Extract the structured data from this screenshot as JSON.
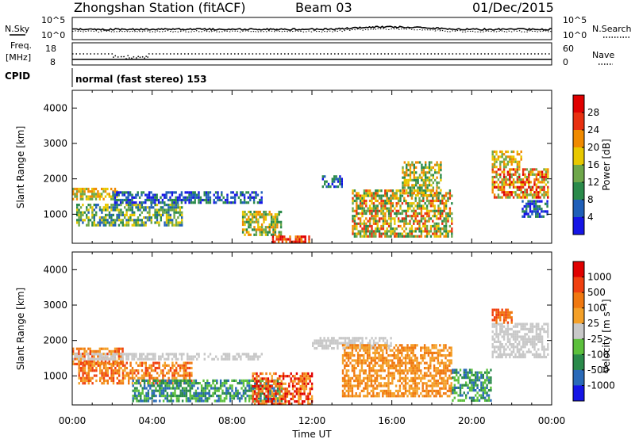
{
  "header": {
    "station": "Zhongshan Station (fitACF)",
    "beam": "Beam 03",
    "date": "01/Dec/2015"
  },
  "strip": {
    "nsky_label": "N.Sky",
    "nsky_scale": [
      "10^5",
      "10^0"
    ],
    "nsearch_label": "N.Search",
    "nsearch_scale": [
      "10^5",
      "10^0"
    ],
    "freq_label": [
      "Freq.",
      "[MHz]"
    ],
    "freq_scale": [
      "18",
      "8"
    ],
    "nave_label": "Nave",
    "nave_scale": [
      "60",
      "0"
    ],
    "cpid_label": "CPID",
    "cpid_text": "normal (fast stereo) 153"
  },
  "chart_data": [
    {
      "type": "heatmap",
      "title": "",
      "ylabel": "Slant Range [km]",
      "xlabel": "",
      "x_ticks": [
        "00:00",
        "04:00",
        "08:00",
        "12:00",
        "16:00",
        "20:00",
        "00:00"
      ],
      "y_ticks": [
        "1000",
        "2000",
        "3000",
        "4000"
      ],
      "ylim": [
        180,
        4500
      ],
      "xlim_hours": [
        0,
        24
      ],
      "colorbar": {
        "label": "Power [dB]",
        "ticks": [
          "4",
          "8",
          "12",
          "16",
          "20",
          "24",
          "28"
        ],
        "colors": [
          "#1515e6",
          "#1f5fb8",
          "#2a8a4a",
          "#6ea74a",
          "#e8c800",
          "#f08a00",
          "#e83010",
          "#e00000"
        ]
      },
      "regions": [
        {
          "t0": 0.0,
          "t1": 2.2,
          "r0": 1400,
          "r1": 1750,
          "level": [
            3,
            5
          ]
        },
        {
          "t0": 0.2,
          "t1": 5.5,
          "r0": 700,
          "r1": 1300,
          "level": [
            1,
            4
          ]
        },
        {
          "t0": 2.0,
          "t1": 9.5,
          "r0": 1350,
          "r1": 1650,
          "level": [
            0,
            2
          ]
        },
        {
          "t0": 8.5,
          "t1": 10.5,
          "r0": 400,
          "r1": 1100,
          "level": [
            2,
            5
          ]
        },
        {
          "t0": 10.0,
          "t1": 12.0,
          "r0": 200,
          "r1": 400,
          "level": [
            5,
            7
          ]
        },
        {
          "t0": 12.5,
          "t1": 13.5,
          "r0": 1800,
          "r1": 2100,
          "level": [
            0,
            2
          ]
        },
        {
          "t0": 14.0,
          "t1": 19.0,
          "r0": 400,
          "r1": 1700,
          "level": [
            2,
            6
          ]
        },
        {
          "t0": 16.5,
          "t1": 18.5,
          "r0": 1500,
          "r1": 2500,
          "level": [
            2,
            5
          ]
        },
        {
          "t0": 21.0,
          "t1": 23.8,
          "r0": 1500,
          "r1": 2300,
          "level": [
            3,
            7
          ]
        },
        {
          "t0": 21.0,
          "t1": 22.5,
          "r0": 2300,
          "r1": 2800,
          "level": [
            3,
            5
          ]
        },
        {
          "t0": 22.5,
          "t1": 23.8,
          "r0": 900,
          "r1": 1400,
          "level": [
            0,
            2
          ]
        }
      ]
    },
    {
      "type": "heatmap",
      "title": "",
      "ylabel": "Slant Range [km]",
      "xlabel": "Time UT",
      "x_ticks": [
        "00:00",
        "04:00",
        "08:00",
        "12:00",
        "16:00",
        "20:00",
        "00:00"
      ],
      "y_ticks": [
        "1000",
        "2000",
        "3000",
        "4000"
      ],
      "ylim": [
        180,
        4500
      ],
      "xlim_hours": [
        0,
        24
      ],
      "colorbar": {
        "label": "Velocity [m s⁻¹]",
        "ticks": [
          "1000",
          "500",
          "100",
          "25",
          "-25",
          "-100",
          "-500",
          "-1000"
        ],
        "colors": [
          "#1515e6",
          "#2a6ab8",
          "#2a8a4a",
          "#5cc03c",
          "#c8c8c8",
          "#f4a028",
          "#f07810",
          "#f04010",
          "#e00000"
        ]
      },
      "regions": [
        {
          "t0": 0.0,
          "t1": 2.5,
          "r0": 1300,
          "r1": 1800,
          "level": [
            5,
            7
          ]
        },
        {
          "t0": 0.0,
          "t1": 9.5,
          "r0": 1500,
          "r1": 1650,
          "level": [
            4,
            4
          ]
        },
        {
          "t0": 0.3,
          "t1": 6.0,
          "r0": 800,
          "r1": 1400,
          "level": [
            5,
            7
          ]
        },
        {
          "t0": 3.0,
          "t1": 10.5,
          "r0": 300,
          "r1": 900,
          "level": [
            1,
            3
          ]
        },
        {
          "t0": 9.0,
          "t1": 12.0,
          "r0": 200,
          "r1": 1100,
          "level": [
            5,
            8
          ]
        },
        {
          "t0": 12.0,
          "t1": 16.0,
          "r0": 1800,
          "r1": 2100,
          "level": [
            4,
            4
          ]
        },
        {
          "t0": 13.5,
          "t1": 19.0,
          "r0": 400,
          "r1": 1900,
          "level": [
            5,
            6
          ]
        },
        {
          "t0": 19.0,
          "t1": 21.0,
          "r0": 300,
          "r1": 1200,
          "level": [
            1,
            3
          ]
        },
        {
          "t0": 21.0,
          "t1": 23.8,
          "r0": 1500,
          "r1": 2500,
          "level": [
            4,
            4
          ]
        },
        {
          "t0": 21.0,
          "t1": 22.0,
          "r0": 2500,
          "r1": 2900,
          "level": [
            6,
            7
          ]
        }
      ]
    }
  ]
}
